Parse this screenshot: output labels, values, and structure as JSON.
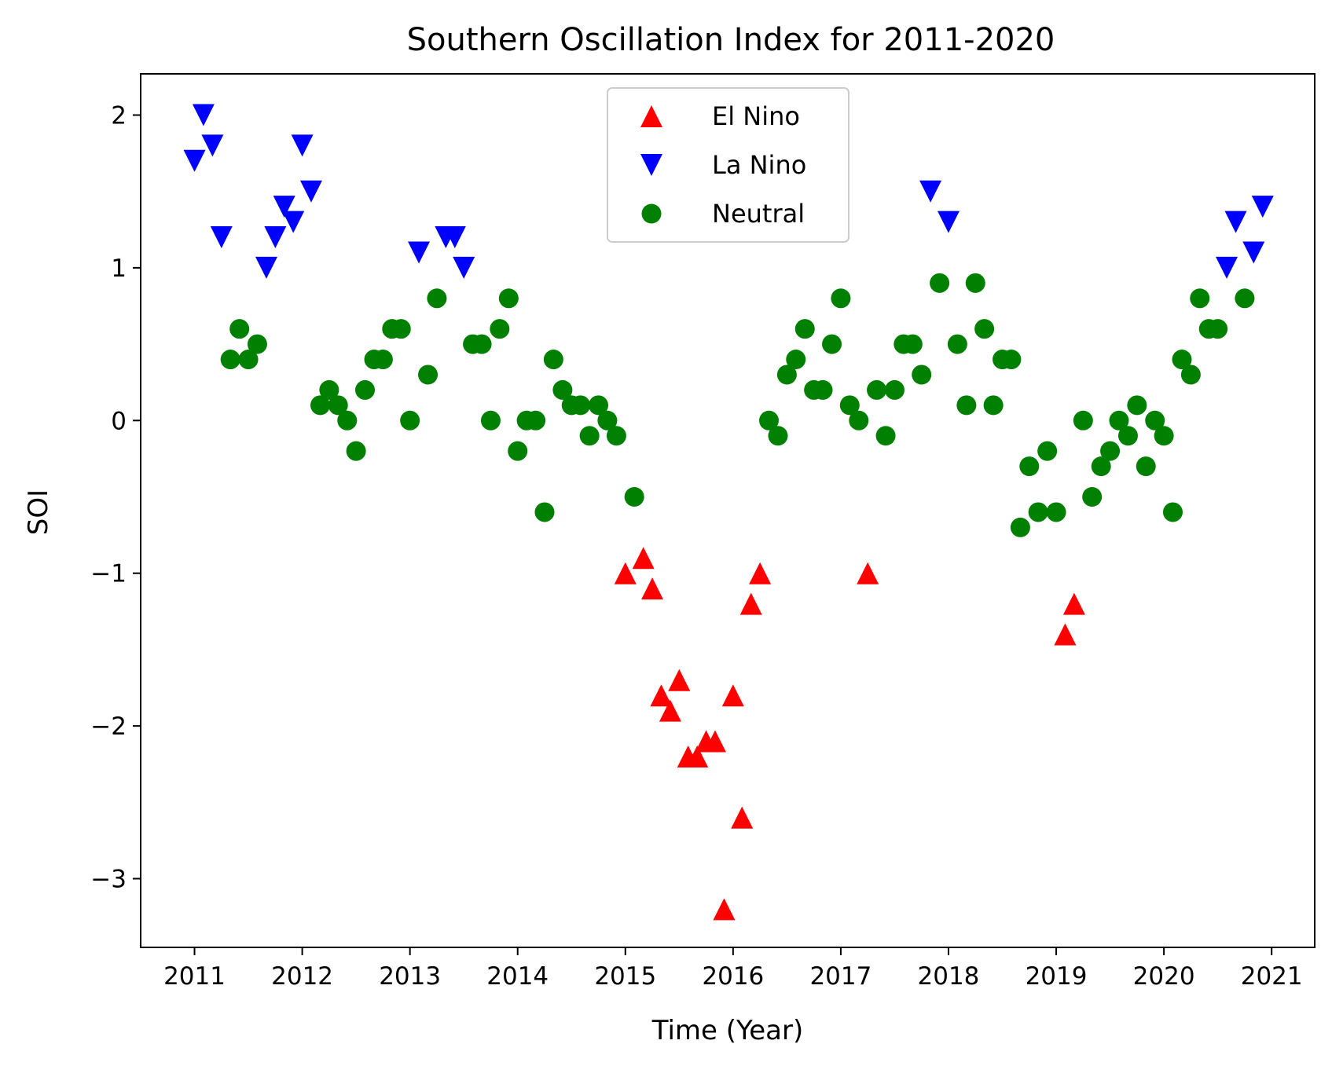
{
  "chart_data": {
    "type": "scatter",
    "title": "Southern Oscillation Index for 2011-2020",
    "xlabel": "Time (Year)",
    "ylabel": "SOI",
    "xlim": [
      2010.5,
      2021.4
    ],
    "ylim": [
      -3.45,
      2.27
    ],
    "x_ticks": [
      2011,
      2012,
      2013,
      2014,
      2015,
      2016,
      2017,
      2018,
      2019,
      2020,
      2021
    ],
    "x_tick_labels": [
      "2011",
      "2012",
      "2013",
      "2014",
      "2015",
      "2016",
      "2017",
      "2018",
      "2019",
      "2020",
      "2021"
    ],
    "y_ticks": [
      -3,
      -2,
      -1,
      0,
      1,
      2
    ],
    "y_tick_labels": [
      "−3",
      "−2",
      "−1",
      "0",
      "1",
      "2"
    ],
    "grid": false,
    "legend_position": "top-center",
    "legend": [
      {
        "label": "El Nino",
        "series": "el_nino"
      },
      {
        "label": "La Nino",
        "series": "la_nina"
      },
      {
        "label": "Neutral",
        "series": "neutral"
      }
    ],
    "series": [
      {
        "name": "El Nino",
        "key": "el_nino",
        "marker": "triangle-up",
        "color": "#ff0000",
        "x": [
          2015.0,
          2015.167,
          2015.25,
          2015.333,
          2015.417,
          2015.5,
          2015.583,
          2015.667,
          2015.75,
          2015.833,
          2015.917,
          2016.0,
          2016.083,
          2016.167,
          2016.25,
          2017.25,
          2019.083,
          2019.167
        ],
        "y": [
          -1.0,
          -0.9,
          -1.1,
          -1.8,
          -1.9,
          -1.7,
          -2.2,
          -2.2,
          -2.1,
          -2.1,
          -3.2,
          -1.8,
          -2.6,
          -1.2,
          -1.0,
          -1.0,
          -1.4,
          -1.2
        ]
      },
      {
        "name": "La Nino",
        "key": "la_nina",
        "marker": "triangle-down",
        "color": "#0000ff",
        "x": [
          2011.0,
          2011.083,
          2011.167,
          2011.25,
          2011.667,
          2011.75,
          2011.833,
          2011.917,
          2012.0,
          2012.083,
          2013.083,
          2013.333,
          2013.417,
          2013.5,
          2017.833,
          2018.0,
          2020.583,
          2020.667,
          2020.833,
          2020.917
        ],
        "y": [
          1.7,
          2.0,
          1.8,
          1.2,
          1.0,
          1.2,
          1.4,
          1.3,
          1.8,
          1.5,
          1.1,
          1.2,
          1.2,
          1.0,
          1.5,
          1.3,
          1.0,
          1.3,
          1.1,
          1.4
        ]
      },
      {
        "name": "Neutral",
        "key": "neutral",
        "marker": "circle",
        "color": "#008000",
        "x": [
          2011.333,
          2011.417,
          2011.5,
          2011.583,
          2012.167,
          2012.25,
          2012.333,
          2012.417,
          2012.5,
          2012.583,
          2012.667,
          2012.75,
          2012.833,
          2012.917,
          2013.0,
          2013.167,
          2013.25,
          2013.583,
          2013.667,
          2013.75,
          2013.833,
          2013.917,
          2014.0,
          2014.083,
          2014.167,
          2014.25,
          2014.333,
          2014.417,
          2014.5,
          2014.583,
          2014.667,
          2014.75,
          2014.833,
          2014.917,
          2015.083,
          2016.333,
          2016.417,
          2016.5,
          2016.583,
          2016.667,
          2016.75,
          2016.833,
          2016.917,
          2017.0,
          2017.083,
          2017.167,
          2017.333,
          2017.417,
          2017.5,
          2017.583,
          2017.667,
          2017.75,
          2017.917,
          2018.083,
          2018.167,
          2018.25,
          2018.333,
          2018.417,
          2018.5,
          2018.583,
          2018.667,
          2018.75,
          2018.833,
          2018.917,
          2019.0,
          2019.25,
          2019.333,
          2019.417,
          2019.5,
          2019.583,
          2019.667,
          2019.75,
          2019.833,
          2019.917,
          2020.0,
          2020.083,
          2020.167,
          2020.25,
          2020.333,
          2020.417,
          2020.5,
          2020.75
        ],
        "y": [
          0.4,
          0.6,
          0.4,
          0.5,
          0.1,
          0.2,
          0.1,
          0.0,
          -0.2,
          0.2,
          0.4,
          0.4,
          0.6,
          0.6,
          0.0,
          0.3,
          0.8,
          0.5,
          0.5,
          0.0,
          0.6,
          0.8,
          -0.2,
          0.0,
          0.0,
          -0.6,
          0.4,
          0.2,
          0.1,
          0.1,
          -0.1,
          0.1,
          0.0,
          -0.1,
          -0.5,
          0.0,
          -0.1,
          0.3,
          0.4,
          0.6,
          0.2,
          0.2,
          0.5,
          0.8,
          0.1,
          0.0,
          0.2,
          -0.1,
          0.2,
          0.5,
          0.5,
          0.3,
          0.9,
          0.5,
          0.1,
          0.9,
          0.6,
          0.1,
          0.4,
          0.4,
          -0.7,
          -0.3,
          -0.6,
          -0.2,
          -0.6,
          0.0,
          -0.5,
          -0.3,
          -0.2,
          0.0,
          -0.1,
          0.1,
          -0.3,
          0.0,
          -0.1,
          -0.6,
          0.4,
          0.3,
          0.8,
          0.6,
          0.6,
          0.8
        ]
      }
    ]
  }
}
